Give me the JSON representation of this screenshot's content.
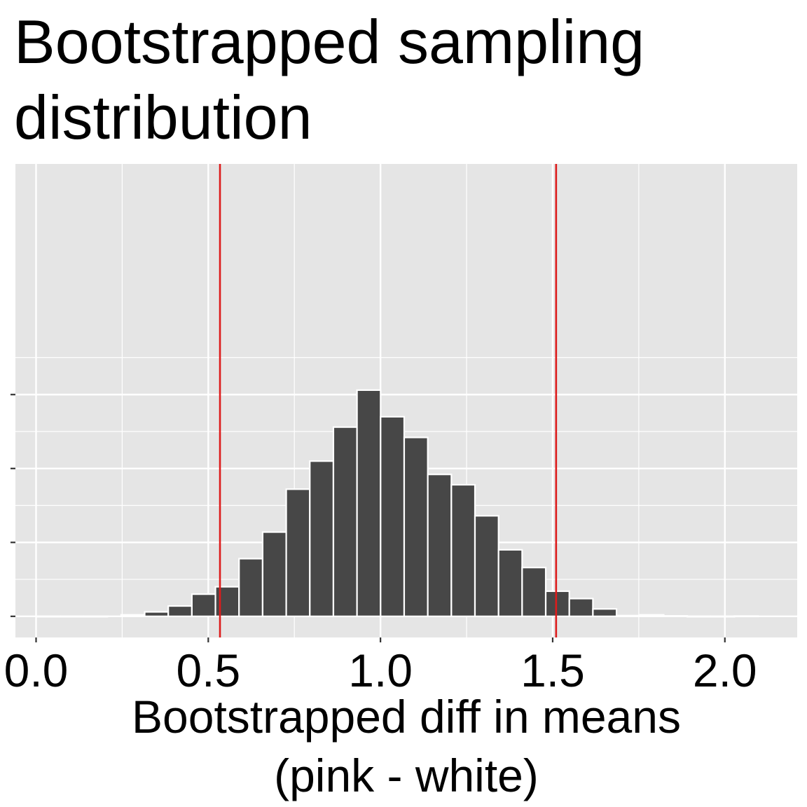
{
  "chart_data": {
    "type": "bar",
    "title_lines": [
      "Bootstrapped sampling",
      "distribution"
    ],
    "xlabel_lines": [
      "Bootstrapped diff in means",
      "(pink - white)"
    ],
    "ylabel": "",
    "x_ticks": [
      0.0,
      0.5,
      1.0,
      1.5,
      2.0
    ],
    "x_tick_labels": [
      "0.0",
      "0.5",
      "1.0",
      "1.5",
      "2.0"
    ],
    "xlim": [
      -0.06,
      2.21
    ],
    "ylim": [
      -14.3,
      306
    ],
    "y_gridlines": [
      0,
      50,
      100,
      150
    ],
    "y_tick_labels_shown": false,
    "bin_width": 0.0685,
    "bins": [
      {
        "x": 0.0356,
        "count": 0
      },
      {
        "x": 0.1041,
        "count": 0
      },
      {
        "x": 0.1726,
        "count": 0
      },
      {
        "x": 0.2811,
        "count": 1
      },
      {
        "x": 0.3496,
        "count": 3
      },
      {
        "x": 0.4181,
        "count": 7
      },
      {
        "x": 0.4866,
        "count": 15
      },
      {
        "x": 0.5551,
        "count": 20
      },
      {
        "x": 0.6236,
        "count": 39
      },
      {
        "x": 0.6921,
        "count": 57
      },
      {
        "x": 0.7606,
        "count": 86
      },
      {
        "x": 0.8291,
        "count": 105
      },
      {
        "x": 0.8976,
        "count": 128
      },
      {
        "x": 0.9661,
        "count": 153
      },
      {
        "x": 1.0346,
        "count": 135
      },
      {
        "x": 1.1031,
        "count": 121
      },
      {
        "x": 1.1716,
        "count": 96
      },
      {
        "x": 1.2401,
        "count": 89
      },
      {
        "x": 1.3086,
        "count": 68
      },
      {
        "x": 1.3771,
        "count": 45
      },
      {
        "x": 1.4456,
        "count": 33
      },
      {
        "x": 1.5141,
        "count": 17
      },
      {
        "x": 1.5826,
        "count": 12
      },
      {
        "x": 1.6511,
        "count": 5
      },
      {
        "x": 1.7196,
        "count": 0.5
      },
      {
        "x": 1.7881,
        "count": 1
      },
      {
        "x": 1.8566,
        "count": 0.3
      },
      {
        "x": 1.9251,
        "count": 0
      },
      {
        "x": 1.9936,
        "count": 0
      },
      {
        "x": 2.0621,
        "count": 0.2
      }
    ],
    "vlines": [
      0.534,
      1.51
    ],
    "colors": {
      "panel_bg": "#e5e5e5",
      "grid": "#ffffff",
      "bar_fill": "#474747",
      "bar_outline": "#ffffff",
      "vline": "#dd1c1c",
      "text": "#000000",
      "axis_tick": "#333333"
    },
    "grid": true,
    "legend": "none"
  }
}
